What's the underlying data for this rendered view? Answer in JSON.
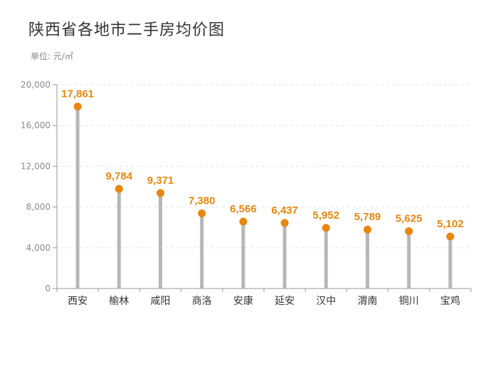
{
  "chart_data": {
    "type": "lollipop",
    "title": "陕西省各地市二手房均价图",
    "unit_label": "单位: 元/㎡",
    "categories": [
      "西安",
      "榆林",
      "咸阳",
      "商洛",
      "安康",
      "延安",
      "汉中",
      "渭南",
      "铜川",
      "宝鸡"
    ],
    "values": [
      17861,
      9784,
      9371,
      7380,
      6566,
      6437,
      5952,
      5789,
      5625,
      5102
    ],
    "value_labels": [
      "17,861",
      "9,784",
      "9,371",
      "7,380",
      "6,566",
      "6,437",
      "5,952",
      "5,789",
      "5,625",
      "5,102"
    ],
    "y_ticks": [
      "0",
      "4,000",
      "8,000",
      "12,000",
      "16,000",
      "20,000"
    ],
    "ylim": [
      0,
      20000
    ],
    "grid": true,
    "colors": {
      "stem": "#b7b7b7",
      "marker": "#e8860f",
      "label": "#e8860f",
      "grid": "#e6e6e6",
      "axis": "#9a9a9a"
    }
  }
}
